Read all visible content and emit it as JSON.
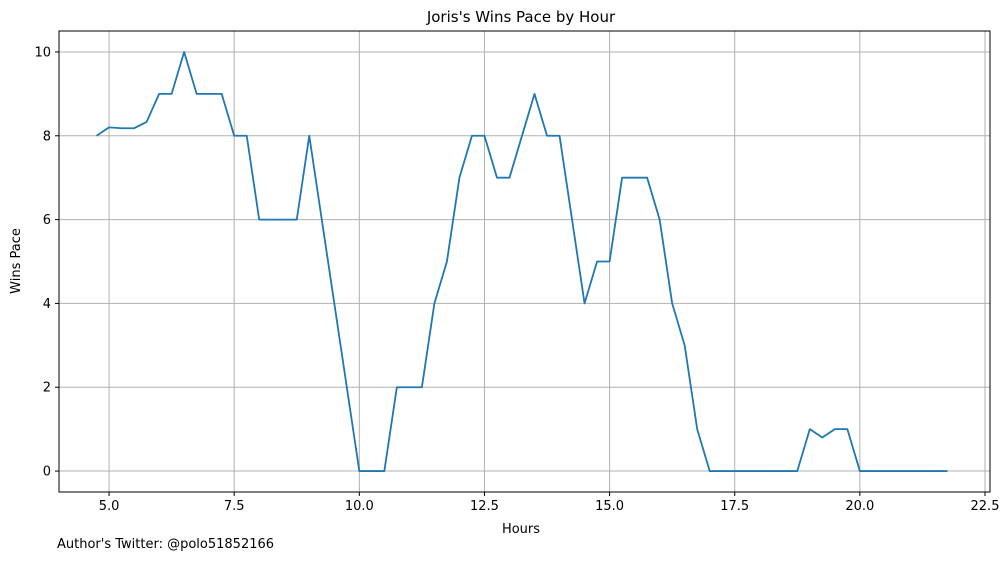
{
  "chart_data": {
    "type": "line",
    "title": "Joris's Wins Pace by Hour",
    "xlabel": "Hours",
    "ylabel": "Wins Pace",
    "xlim": [
      4.0,
      22.6
    ],
    "ylim": [
      -0.5,
      10.5
    ],
    "xticks": [
      5.0,
      7.5,
      10.0,
      12.5,
      15.0,
      17.5,
      20.0,
      22.5
    ],
    "xtick_labels": [
      "5.0",
      "7.5",
      "10.0",
      "12.5",
      "15.0",
      "17.5",
      "20.0",
      "22.5"
    ],
    "yticks": [
      0,
      2,
      4,
      6,
      8,
      10
    ],
    "ytick_labels": [
      "0",
      "2",
      "4",
      "6",
      "8",
      "10"
    ],
    "grid": true,
    "line_color": "#1f77b4",
    "x": [
      4.75,
      5.0,
      5.25,
      5.5,
      5.75,
      6.0,
      6.25,
      6.5,
      6.75,
      7.0,
      7.25,
      7.5,
      7.75,
      8.0,
      8.25,
      8.5,
      8.75,
      9.0,
      9.25,
      9.5,
      9.75,
      10.0,
      10.25,
      10.5,
      10.75,
      11.0,
      11.25,
      11.5,
      11.75,
      12.0,
      12.25,
      12.5,
      12.75,
      13.0,
      13.25,
      13.5,
      13.75,
      14.0,
      14.25,
      14.5,
      14.75,
      15.0,
      15.25,
      15.5,
      15.75,
      16.0,
      16.25,
      16.5,
      16.75,
      17.0,
      17.25,
      17.5,
      17.75,
      18.0,
      18.25,
      18.5,
      18.75,
      19.0,
      19.25,
      19.5,
      19.75,
      20.0,
      20.25,
      20.5,
      20.75,
      21.0,
      21.25,
      21.5,
      21.75
    ],
    "y": [
      8.0,
      8.2,
      8.18,
      8.18,
      8.33,
      9.0,
      9.0,
      10.0,
      9.0,
      9.0,
      9.0,
      8.0,
      8.0,
      6.0,
      6.0,
      6.0,
      6.0,
      8.0,
      6.0,
      4.0,
      2.0,
      0.0,
      0.0,
      0.0,
      2.0,
      2.0,
      2.0,
      4.0,
      5.0,
      7.0,
      8.0,
      8.0,
      7.0,
      7.0,
      8.0,
      9.0,
      8.0,
      8.0,
      6.0,
      4.0,
      5.0,
      5.0,
      7.0,
      7.0,
      7.0,
      6.0,
      4.0,
      3.0,
      1.0,
      0.0,
      0.0,
      0.0,
      0.0,
      0.0,
      0.0,
      0.0,
      0.0,
      1.0,
      0.8,
      1.0,
      1.0,
      0.0,
      0.0,
      0.0,
      0.0,
      0.0,
      0.0,
      0.0,
      0.0
    ]
  },
  "footer": {
    "note": "Author's Twitter: @polo51852166"
  }
}
